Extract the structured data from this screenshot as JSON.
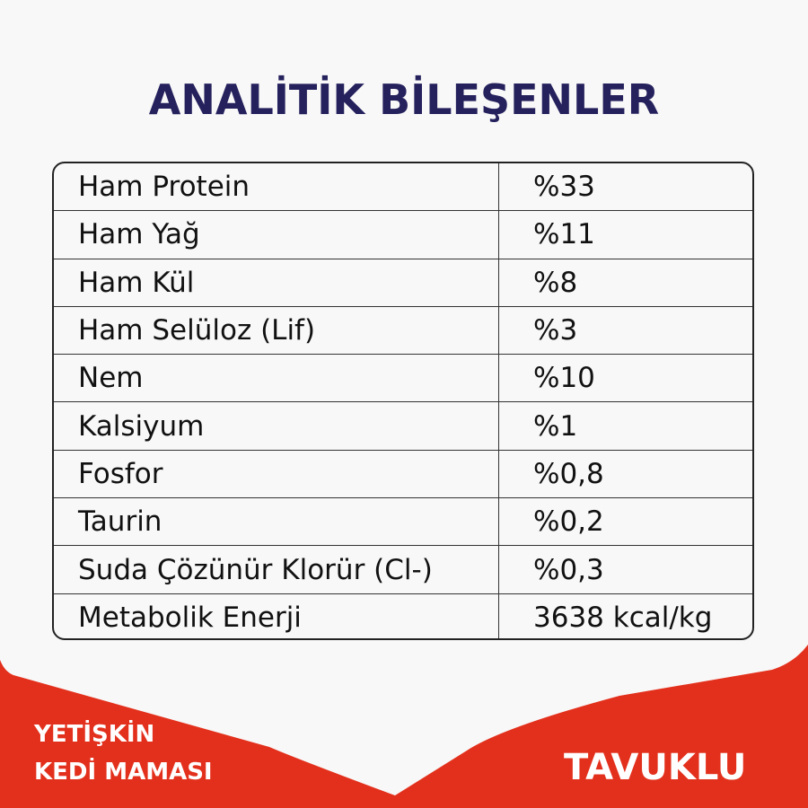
{
  "title": "ANALİTİK BİLEŞENLER",
  "rows": [
    {
      "label": "Ham Protein",
      "value": "%33"
    },
    {
      "label": "Ham Yağ",
      "value": "%11"
    },
    {
      "label": "Ham Kül",
      "value": "%8"
    },
    {
      "label": "Ham Selüloz (Lif)",
      "value": "%3"
    },
    {
      "label": "Nem",
      "value": "%10"
    },
    {
      "label": "Kalsiyum",
      "value": "%1"
    },
    {
      "label": "Fosfor",
      "value": "%0,8"
    },
    {
      "label": "Taurin",
      "value": "%0,2"
    },
    {
      "label": "Suda Çözünür Klorür (Cl-)",
      "value": "%0,3"
    },
    {
      "label": "Metabolik Enerji",
      "value": "3638 kcal/kg"
    }
  ],
  "footer": {
    "line1": "YETİŞKİN",
    "line2": "KEDİ MAMASI",
    "flavor": "TAVUKLU"
  },
  "colors": {
    "title": "#25215d",
    "band": "#e3301c",
    "background": "#f8f8f8"
  }
}
